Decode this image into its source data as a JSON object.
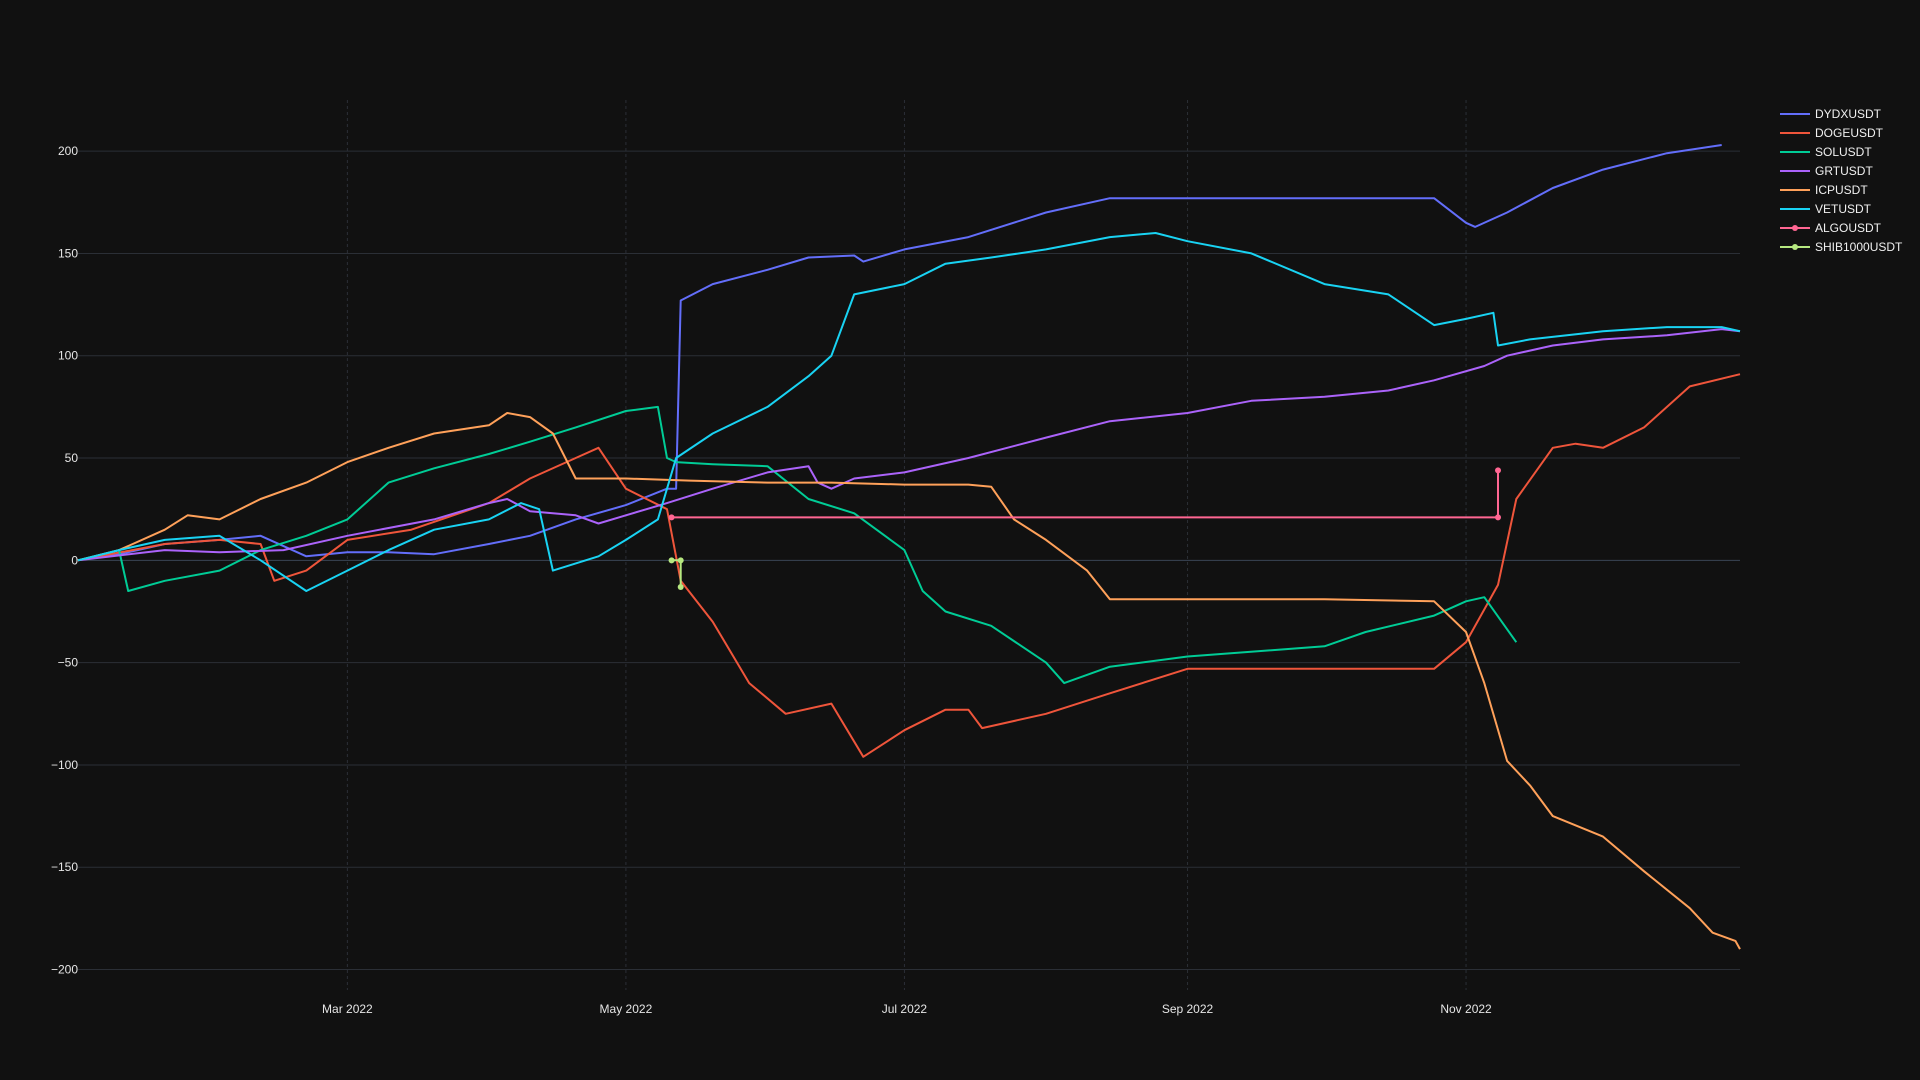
{
  "chart_data": {
    "type": "line",
    "title": "",
    "xlabel": "",
    "ylabel": "",
    "grid": true,
    "legend_position": "top-right",
    "x_range": [
      "2022-01-01",
      "2022-12-31"
    ],
    "ylim": [
      -210,
      225
    ],
    "y_ticks": [
      200,
      150,
      100,
      50,
      0,
      -50,
      -100,
      -150,
      -200
    ],
    "y_tick_labels": [
      "200",
      "150",
      "100",
      "50",
      "0",
      "−50",
      "−100",
      "−150",
      "−200"
    ],
    "x_ticks": [
      {
        "date": "2022-03-01",
        "label": "Mar 2022"
      },
      {
        "date": "2022-05-01",
        "label": "May 2022"
      },
      {
        "date": "2022-07-01",
        "label": "Jul 2022"
      },
      {
        "date": "2022-09-01",
        "label": "Sep 2022"
      },
      {
        "date": "2022-11-01",
        "label": "Nov 2022"
      }
    ],
    "series": [
      {
        "name": "DYDXUSDT",
        "color": "#636efa",
        "markers": false,
        "points": [
          [
            "2022-01-01",
            0
          ],
          [
            "2022-01-10",
            3
          ],
          [
            "2022-01-20",
            8
          ],
          [
            "2022-02-01",
            10
          ],
          [
            "2022-02-10",
            12
          ],
          [
            "2022-02-20",
            2
          ],
          [
            "2022-03-01",
            4
          ],
          [
            "2022-03-10",
            4
          ],
          [
            "2022-03-20",
            3
          ],
          [
            "2022-04-01",
            8
          ],
          [
            "2022-04-10",
            12
          ],
          [
            "2022-04-20",
            20
          ],
          [
            "2022-05-01",
            27
          ],
          [
            "2022-05-10",
            35
          ],
          [
            "2022-05-12",
            35
          ],
          [
            "2022-05-13",
            127
          ],
          [
            "2022-05-20",
            135
          ],
          [
            "2022-06-01",
            142
          ],
          [
            "2022-06-10",
            148
          ],
          [
            "2022-06-20",
            149
          ],
          [
            "2022-06-22",
            146
          ],
          [
            "2022-07-01",
            152
          ],
          [
            "2022-07-15",
            158
          ],
          [
            "2022-08-01",
            170
          ],
          [
            "2022-08-15",
            177
          ],
          [
            "2022-09-01",
            177
          ],
          [
            "2022-10-01",
            177
          ],
          [
            "2022-10-25",
            177
          ],
          [
            "2022-11-01",
            165
          ],
          [
            "2022-11-03",
            163
          ],
          [
            "2022-11-10",
            170
          ],
          [
            "2022-11-20",
            182
          ],
          [
            "2022-12-01",
            191
          ],
          [
            "2022-12-15",
            199
          ],
          [
            "2022-12-27",
            203
          ]
        ]
      },
      {
        "name": "DOGEUSDT",
        "color": "#ef553b",
        "markers": false,
        "points": [
          [
            "2022-01-01",
            0
          ],
          [
            "2022-01-20",
            8
          ],
          [
            "2022-02-01",
            10
          ],
          [
            "2022-02-10",
            8
          ],
          [
            "2022-02-13",
            -10
          ],
          [
            "2022-02-20",
            -5
          ],
          [
            "2022-03-01",
            10
          ],
          [
            "2022-03-15",
            15
          ],
          [
            "2022-04-01",
            28
          ],
          [
            "2022-04-10",
            40
          ],
          [
            "2022-04-20",
            50
          ],
          [
            "2022-04-25",
            55
          ],
          [
            "2022-05-01",
            35
          ],
          [
            "2022-05-10",
            25
          ],
          [
            "2022-05-13",
            -10
          ],
          [
            "2022-05-20",
            -30
          ],
          [
            "2022-05-28",
            -60
          ],
          [
            "2022-06-05",
            -75
          ],
          [
            "2022-06-15",
            -70
          ],
          [
            "2022-06-22",
            -96
          ],
          [
            "2022-07-01",
            -83
          ],
          [
            "2022-07-10",
            -73
          ],
          [
            "2022-07-15",
            -73
          ],
          [
            "2022-07-18",
            -82
          ],
          [
            "2022-08-01",
            -75
          ],
          [
            "2022-08-15",
            -65
          ],
          [
            "2022-09-01",
            -53
          ],
          [
            "2022-10-01",
            -53
          ],
          [
            "2022-10-25",
            -53
          ],
          [
            "2022-11-01",
            -40
          ],
          [
            "2022-11-08",
            -12
          ],
          [
            "2022-11-12",
            30
          ],
          [
            "2022-11-20",
            55
          ],
          [
            "2022-11-25",
            57
          ],
          [
            "2022-12-01",
            55
          ],
          [
            "2022-12-10",
            65
          ],
          [
            "2022-12-20",
            85
          ],
          [
            "2022-12-31",
            91
          ]
        ]
      },
      {
        "name": "SOLUSDT",
        "color": "#00cc96",
        "markers": false,
        "points": [
          [
            "2022-01-01",
            0
          ],
          [
            "2022-01-10",
            5
          ],
          [
            "2022-01-12",
            -15
          ],
          [
            "2022-01-20",
            -10
          ],
          [
            "2022-02-01",
            -5
          ],
          [
            "2022-02-10",
            5
          ],
          [
            "2022-02-20",
            12
          ],
          [
            "2022-03-01",
            20
          ],
          [
            "2022-03-10",
            38
          ],
          [
            "2022-03-20",
            45
          ],
          [
            "2022-04-01",
            52
          ],
          [
            "2022-04-10",
            58
          ],
          [
            "2022-04-20",
            65
          ],
          [
            "2022-05-01",
            73
          ],
          [
            "2022-05-08",
            75
          ],
          [
            "2022-05-10",
            50
          ],
          [
            "2022-05-12",
            48
          ],
          [
            "2022-05-20",
            47
          ],
          [
            "2022-06-01",
            46
          ],
          [
            "2022-06-10",
            30
          ],
          [
            "2022-06-20",
            23
          ],
          [
            "2022-07-01",
            5
          ],
          [
            "2022-07-05",
            -15
          ],
          [
            "2022-07-10",
            -25
          ],
          [
            "2022-07-20",
            -32
          ],
          [
            "2022-08-01",
            -50
          ],
          [
            "2022-08-05",
            -60
          ],
          [
            "2022-08-15",
            -52
          ],
          [
            "2022-09-01",
            -47
          ],
          [
            "2022-10-01",
            -42
          ],
          [
            "2022-10-10",
            -35
          ],
          [
            "2022-10-25",
            -27
          ],
          [
            "2022-11-01",
            -20
          ],
          [
            "2022-11-05",
            -18
          ],
          [
            "2022-11-12",
            -40
          ]
        ]
      },
      {
        "name": "GRTUSDT",
        "color": "#ab63fa",
        "markers": false,
        "points": [
          [
            "2022-01-01",
            0
          ],
          [
            "2022-01-20",
            5
          ],
          [
            "2022-02-01",
            4
          ],
          [
            "2022-02-15",
            5
          ],
          [
            "2022-03-01",
            12
          ],
          [
            "2022-03-20",
            20
          ],
          [
            "2022-04-01",
            28
          ],
          [
            "2022-04-05",
            30
          ],
          [
            "2022-04-10",
            24
          ],
          [
            "2022-04-20",
            22
          ],
          [
            "2022-04-25",
            18
          ],
          [
            "2022-05-01",
            22
          ],
          [
            "2022-05-10",
            28
          ],
          [
            "2022-05-20",
            35
          ],
          [
            "2022-06-01",
            43
          ],
          [
            "2022-06-10",
            46
          ],
          [
            "2022-06-12",
            38
          ],
          [
            "2022-06-15",
            35
          ],
          [
            "2022-06-20",
            40
          ],
          [
            "2022-07-01",
            43
          ],
          [
            "2022-07-15",
            50
          ],
          [
            "2022-08-01",
            60
          ],
          [
            "2022-08-15",
            68
          ],
          [
            "2022-09-01",
            72
          ],
          [
            "2022-09-15",
            78
          ],
          [
            "2022-10-01",
            80
          ],
          [
            "2022-10-15",
            83
          ],
          [
            "2022-10-25",
            88
          ],
          [
            "2022-11-05",
            95
          ],
          [
            "2022-11-10",
            100
          ],
          [
            "2022-11-20",
            105
          ],
          [
            "2022-12-01",
            108
          ],
          [
            "2022-12-15",
            110
          ],
          [
            "2022-12-27",
            113
          ],
          [
            "2022-12-31",
            112
          ]
        ]
      },
      {
        "name": "ICPUSDT",
        "color": "#ffa15a",
        "markers": false,
        "points": [
          [
            "2022-01-01",
            0
          ],
          [
            "2022-01-10",
            5
          ],
          [
            "2022-01-20",
            15
          ],
          [
            "2022-01-25",
            22
          ],
          [
            "2022-02-01",
            20
          ],
          [
            "2022-02-10",
            30
          ],
          [
            "2022-02-20",
            38
          ],
          [
            "2022-03-01",
            48
          ],
          [
            "2022-03-10",
            55
          ],
          [
            "2022-03-20",
            62
          ],
          [
            "2022-04-01",
            66
          ],
          [
            "2022-04-05",
            72
          ],
          [
            "2022-04-10",
            70
          ],
          [
            "2022-04-15",
            62
          ],
          [
            "2022-04-20",
            40
          ],
          [
            "2022-05-01",
            40
          ],
          [
            "2022-05-15",
            39
          ],
          [
            "2022-06-01",
            38
          ],
          [
            "2022-06-15",
            38
          ],
          [
            "2022-07-01",
            37
          ],
          [
            "2022-07-15",
            37
          ],
          [
            "2022-07-20",
            36
          ],
          [
            "2022-07-25",
            20
          ],
          [
            "2022-08-01",
            10
          ],
          [
            "2022-08-10",
            -5
          ],
          [
            "2022-08-15",
            -19
          ],
          [
            "2022-09-01",
            -19
          ],
          [
            "2022-10-01",
            -19
          ],
          [
            "2022-10-25",
            -20
          ],
          [
            "2022-11-01",
            -35
          ],
          [
            "2022-11-05",
            -60
          ],
          [
            "2022-11-10",
            -98
          ],
          [
            "2022-11-15",
            -110
          ],
          [
            "2022-11-20",
            -125
          ],
          [
            "2022-12-01",
            -135
          ],
          [
            "2022-12-10",
            -152
          ],
          [
            "2022-12-20",
            -170
          ],
          [
            "2022-12-25",
            -182
          ],
          [
            "2022-12-30",
            -186
          ],
          [
            "2022-12-31",
            -190
          ]
        ]
      },
      {
        "name": "VETUSDT",
        "color": "#19d3f3",
        "markers": false,
        "points": [
          [
            "2022-01-01",
            0
          ],
          [
            "2022-01-10",
            5
          ],
          [
            "2022-01-20",
            10
          ],
          [
            "2022-02-01",
            12
          ],
          [
            "2022-02-10",
            0
          ],
          [
            "2022-02-20",
            -15
          ],
          [
            "2022-03-01",
            -5
          ],
          [
            "2022-03-10",
            5
          ],
          [
            "2022-03-20",
            15
          ],
          [
            "2022-04-01",
            20
          ],
          [
            "2022-04-08",
            28
          ],
          [
            "2022-04-12",
            25
          ],
          [
            "2022-04-15",
            -5
          ],
          [
            "2022-04-25",
            2
          ],
          [
            "2022-05-01",
            10
          ],
          [
            "2022-05-08",
            20
          ],
          [
            "2022-05-12",
            50
          ],
          [
            "2022-05-20",
            62
          ],
          [
            "2022-06-01",
            75
          ],
          [
            "2022-06-10",
            90
          ],
          [
            "2022-06-15",
            100
          ],
          [
            "2022-06-20",
            130
          ],
          [
            "2022-07-01",
            135
          ],
          [
            "2022-07-10",
            145
          ],
          [
            "2022-07-20",
            148
          ],
          [
            "2022-08-01",
            152
          ],
          [
            "2022-08-15",
            158
          ],
          [
            "2022-08-25",
            160
          ],
          [
            "2022-09-01",
            156
          ],
          [
            "2022-09-15",
            150
          ],
          [
            "2022-10-01",
            135
          ],
          [
            "2022-10-15",
            130
          ],
          [
            "2022-10-25",
            115
          ],
          [
            "2022-11-01",
            118
          ],
          [
            "2022-11-07",
            121
          ],
          [
            "2022-11-08",
            105
          ],
          [
            "2022-11-15",
            108
          ],
          [
            "2022-12-01",
            112
          ],
          [
            "2022-12-15",
            114
          ],
          [
            "2022-12-27",
            114
          ],
          [
            "2022-12-31",
            112
          ]
        ]
      },
      {
        "name": "ALGOUSDT",
        "color": "#ff6692",
        "markers": true,
        "points": [
          [
            "2022-05-11",
            21
          ],
          [
            "2022-11-08",
            21
          ],
          [
            "2022-11-08",
            44
          ]
        ]
      },
      {
        "name": "SHIB1000USDT",
        "color": "#b6e880",
        "markers": true,
        "points": [
          [
            "2022-05-11",
            0
          ],
          [
            "2022-05-13",
            0
          ],
          [
            "2022-05-13",
            -13
          ]
        ]
      }
    ]
  }
}
